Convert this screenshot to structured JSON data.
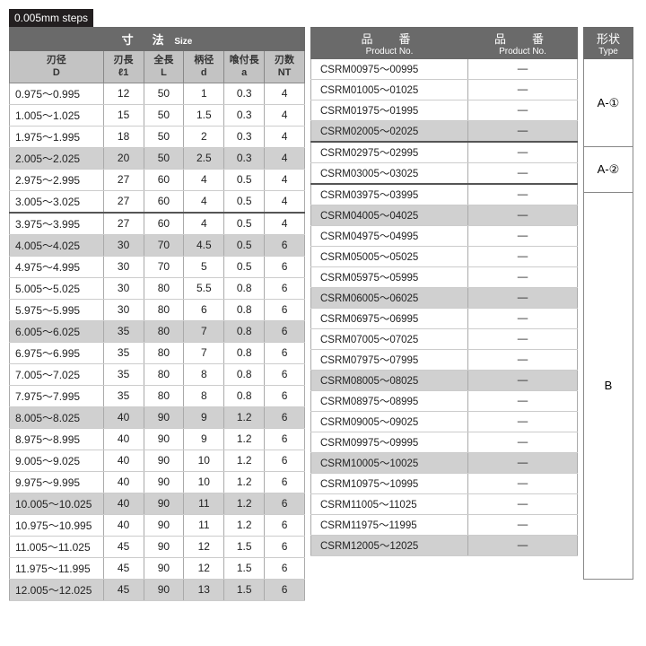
{
  "steps_badge": "0.005mm steps",
  "size_header_jp": "寸　法",
  "size_header_en": "Size",
  "left_cols": [
    {
      "jp": "刃径",
      "sub": "D"
    },
    {
      "jp": "刃長",
      "sub": "ℓ1"
    },
    {
      "jp": "全長",
      "sub": "L"
    },
    {
      "jp": "柄径",
      "sub": "d"
    },
    {
      "jp": "喰付長",
      "sub": "a"
    },
    {
      "jp": "刃数",
      "sub": "NT"
    }
  ],
  "left_rows": [
    {
      "d": "0.975～0.995",
      "l1": "12",
      "L": "50",
      "sd": "1",
      "a": "0.3",
      "nt": "4",
      "hl": false,
      "sep": false
    },
    {
      "d": "1.005～1.025",
      "l1": "15",
      "L": "50",
      "sd": "1.5",
      "a": "0.3",
      "nt": "4",
      "hl": false,
      "sep": false
    },
    {
      "d": "1.975～1.995",
      "l1": "18",
      "L": "50",
      "sd": "2",
      "a": "0.3",
      "nt": "4",
      "hl": false,
      "sep": false
    },
    {
      "d": "2.005～2.025",
      "l1": "20",
      "L": "50",
      "sd": "2.5",
      "a": "0.3",
      "nt": "4",
      "hl": true,
      "sep": false
    },
    {
      "d": "2.975～2.995",
      "l1": "27",
      "L": "60",
      "sd": "4",
      "a": "0.5",
      "nt": "4",
      "hl": false,
      "sep": false
    },
    {
      "d": "3.005～3.025",
      "l1": "27",
      "L": "60",
      "sd": "4",
      "a": "0.5",
      "nt": "4",
      "hl": false,
      "sep": true
    },
    {
      "d": "3.975～3.995",
      "l1": "27",
      "L": "60",
      "sd": "4",
      "a": "0.5",
      "nt": "4",
      "hl": false,
      "sep": false
    },
    {
      "d": "4.005～4.025",
      "l1": "30",
      "L": "70",
      "sd": "4.5",
      "a": "0.5",
      "nt": "6",
      "hl": true,
      "sep": false
    },
    {
      "d": "4.975～4.995",
      "l1": "30",
      "L": "70",
      "sd": "5",
      "a": "0.5",
      "nt": "6",
      "hl": false,
      "sep": false
    },
    {
      "d": "5.005～5.025",
      "l1": "30",
      "L": "80",
      "sd": "5.5",
      "a": "0.8",
      "nt": "6",
      "hl": false,
      "sep": false
    },
    {
      "d": "5.975～5.995",
      "l1": "30",
      "L": "80",
      "sd": "6",
      "a": "0.8",
      "nt": "6",
      "hl": false,
      "sep": false
    },
    {
      "d": "6.005～6.025",
      "l1": "35",
      "L": "80",
      "sd": "7",
      "a": "0.8",
      "nt": "6",
      "hl": true,
      "sep": false
    },
    {
      "d": "6.975～6.995",
      "l1": "35",
      "L": "80",
      "sd": "7",
      "a": "0.8",
      "nt": "6",
      "hl": false,
      "sep": false
    },
    {
      "d": "7.005～7.025",
      "l1": "35",
      "L": "80",
      "sd": "8",
      "a": "0.8",
      "nt": "6",
      "hl": false,
      "sep": false
    },
    {
      "d": "7.975～7.995",
      "l1": "35",
      "L": "80",
      "sd": "8",
      "a": "0.8",
      "nt": "6",
      "hl": false,
      "sep": false
    },
    {
      "d": "8.005～8.025",
      "l1": "40",
      "L": "90",
      "sd": "9",
      "a": "1.2",
      "nt": "6",
      "hl": true,
      "sep": false
    },
    {
      "d": "8.975～8.995",
      "l1": "40",
      "L": "90",
      "sd": "9",
      "a": "1.2",
      "nt": "6",
      "hl": false,
      "sep": false
    },
    {
      "d": "9.005～9.025",
      "l1": "40",
      "L": "90",
      "sd": "10",
      "a": "1.2",
      "nt": "6",
      "hl": false,
      "sep": false
    },
    {
      "d": "9.975～9.995",
      "l1": "40",
      "L": "90",
      "sd": "10",
      "a": "1.2",
      "nt": "6",
      "hl": false,
      "sep": false
    },
    {
      "d": "10.005～10.025",
      "l1": "40",
      "L": "90",
      "sd": "11",
      "a": "1.2",
      "nt": "6",
      "hl": true,
      "sep": false
    },
    {
      "d": "10.975～10.995",
      "l1": "40",
      "L": "90",
      "sd": "11",
      "a": "1.2",
      "nt": "6",
      "hl": false,
      "sep": false
    },
    {
      "d": "11.005～11.025",
      "l1": "45",
      "L": "90",
      "sd": "12",
      "a": "1.5",
      "nt": "6",
      "hl": false,
      "sep": false
    },
    {
      "d": "11.975～11.995",
      "l1": "45",
      "L": "90",
      "sd": "12",
      "a": "1.5",
      "nt": "6",
      "hl": false,
      "sep": false
    },
    {
      "d": "12.005～12.025",
      "l1": "45",
      "L": "90",
      "sd": "13",
      "a": "1.5",
      "nt": "6",
      "hl": true,
      "sep": false
    }
  ],
  "mid_header_jp": "品　番",
  "mid_header_en": "Product No.",
  "mid_rows": [
    {
      "p": "CSRM00975～00995",
      "v": "―",
      "hl": false,
      "sep": false
    },
    {
      "p": "CSRM01005～01025",
      "v": "―",
      "hl": false,
      "sep": false
    },
    {
      "p": "CSRM01975～01995",
      "v": "―",
      "hl": false,
      "sep": false
    },
    {
      "p": "CSRM02005～02025",
      "v": "―",
      "hl": true,
      "sep": true
    },
    {
      "p": "CSRM02975～02995",
      "v": "―",
      "hl": false,
      "sep": false
    },
    {
      "p": "CSRM03005～03025",
      "v": "―",
      "hl": false,
      "sep": true
    },
    {
      "p": "CSRM03975～03995",
      "v": "―",
      "hl": false,
      "sep": false
    },
    {
      "p": "CSRM04005～04025",
      "v": "―",
      "hl": true,
      "sep": false
    },
    {
      "p": "CSRM04975～04995",
      "v": "―",
      "hl": false,
      "sep": false
    },
    {
      "p": "CSRM05005～05025",
      "v": "―",
      "hl": false,
      "sep": false
    },
    {
      "p": "CSRM05975～05995",
      "v": "―",
      "hl": false,
      "sep": false
    },
    {
      "p": "CSRM06005～06025",
      "v": "―",
      "hl": true,
      "sep": false
    },
    {
      "p": "CSRM06975～06995",
      "v": "―",
      "hl": false,
      "sep": false
    },
    {
      "p": "CSRM07005～07025",
      "v": "―",
      "hl": false,
      "sep": false
    },
    {
      "p": "CSRM07975～07995",
      "v": "―",
      "hl": false,
      "sep": false
    },
    {
      "p": "CSRM08005～08025",
      "v": "―",
      "hl": true,
      "sep": false
    },
    {
      "p": "CSRM08975～08995",
      "v": "―",
      "hl": false,
      "sep": false
    },
    {
      "p": "CSRM09005～09025",
      "v": "―",
      "hl": false,
      "sep": false
    },
    {
      "p": "CSRM09975～09995",
      "v": "―",
      "hl": false,
      "sep": false
    },
    {
      "p": "CSRM10005～10025",
      "v": "―",
      "hl": true,
      "sep": false
    },
    {
      "p": "CSRM10975～10995",
      "v": "―",
      "hl": false,
      "sep": false
    },
    {
      "p": "CSRM11005～11025",
      "v": "―",
      "hl": false,
      "sep": false
    },
    {
      "p": "CSRM11975～11995",
      "v": "―",
      "hl": false,
      "sep": false
    },
    {
      "p": "CSRM12005～12025",
      "v": "―",
      "hl": true,
      "sep": false
    }
  ],
  "type_header_jp": "形状",
  "type_header_en": "Type",
  "type_cells": [
    {
      "label": "A-①",
      "span": 4
    },
    {
      "label": "A-②",
      "span": 2
    },
    {
      "label": "B",
      "span": 18
    }
  ]
}
